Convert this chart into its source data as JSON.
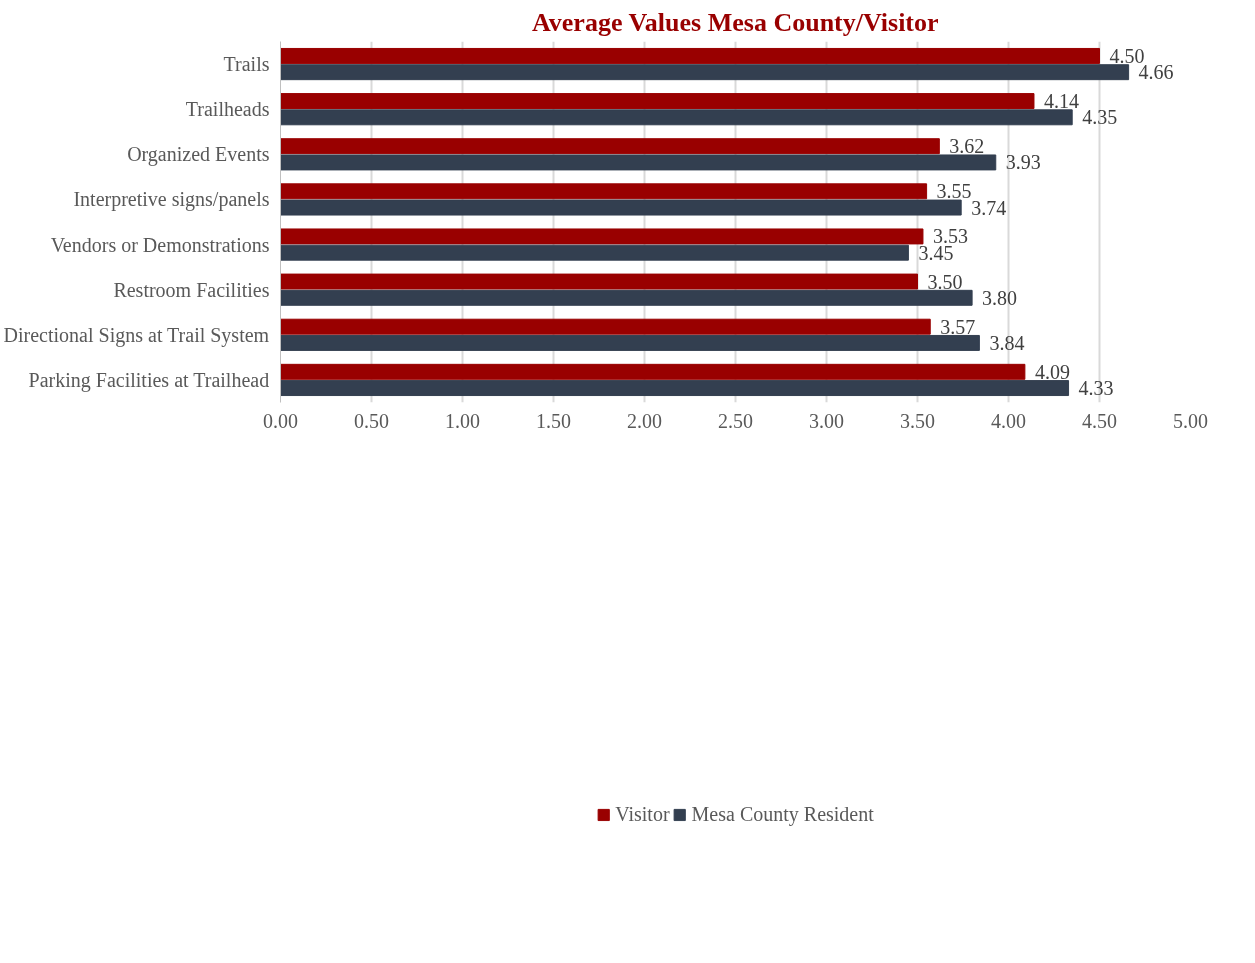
{
  "chart_data": {
    "type": "bar",
    "orientation": "horizontal",
    "title": "Average Values Mesa County/Visitor",
    "categories": [
      "Trails",
      "Trailheads",
      "Organized Events",
      "Interpretive signs/panels",
      "Vendors or Demonstrations",
      "Restroom Facilities",
      "Directional Signs at Trail System",
      "Parking Facilities at Trailhead"
    ],
    "series": [
      {
        "name": "Visitor",
        "color": "#990000",
        "values": [
          4.5,
          4.14,
          3.62,
          3.55,
          3.53,
          3.5,
          3.57,
          4.09
        ],
        "value_labels": [
          "4.50",
          "4.14",
          "3.62",
          "3.55",
          "3.53",
          "3.50",
          "3.57",
          "4.09"
        ]
      },
      {
        "name": "Mesa County Resident",
        "color": "#333f50",
        "values": [
          4.66,
          4.35,
          3.93,
          3.74,
          3.45,
          3.8,
          3.84,
          4.33
        ],
        "value_labels": [
          "4.66",
          "4.35",
          "3.93",
          "3.74",
          "3.45",
          "3.80",
          "3.84",
          "4.33"
        ]
      }
    ],
    "xlim": [
      0,
      5
    ],
    "xticks": [
      {
        "value": 0,
        "label": "0.00"
      },
      {
        "value": 0.5,
        "label": "0.50"
      },
      {
        "value": 1,
        "label": "1.00"
      },
      {
        "value": 1.5,
        "label": "1.50"
      },
      {
        "value": 2,
        "label": "2.00"
      },
      {
        "value": 2.5,
        "label": "2.50"
      },
      {
        "value": 3,
        "label": "3.00"
      },
      {
        "value": 3.5,
        "label": "3.50"
      },
      {
        "value": 4,
        "label": "4.00"
      },
      {
        "value": 4.5,
        "label": "4.50"
      },
      {
        "value": 5,
        "label": "5.00"
      }
    ],
    "grid": "x",
    "legend": "bottom"
  }
}
